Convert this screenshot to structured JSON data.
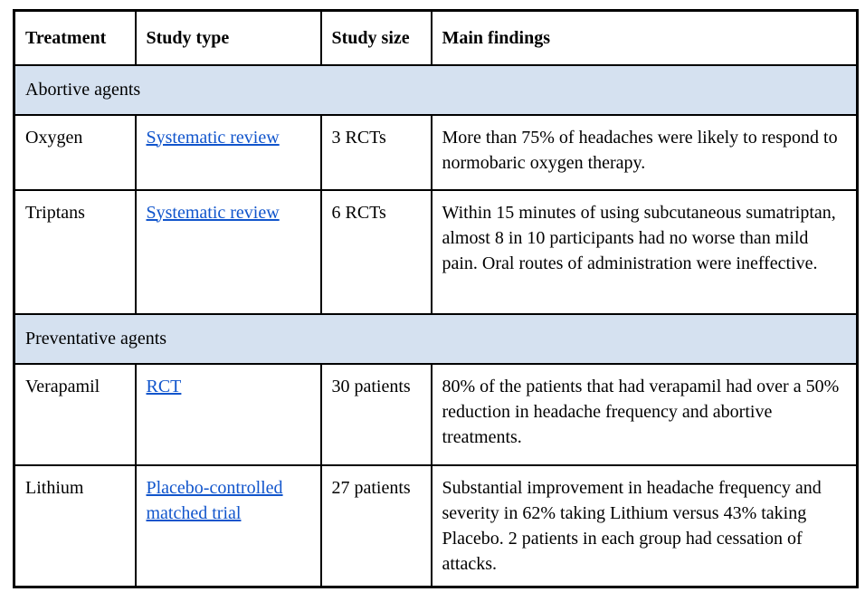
{
  "table": {
    "columns": [
      {
        "label": "Treatment"
      },
      {
        "label": "Study type"
      },
      {
        "label": "Study size"
      },
      {
        "label": "Main findings"
      }
    ],
    "sections": [
      {
        "header": "Abortive agents",
        "rows": [
          {
            "treatment": "Oxygen",
            "study_type": "Systematic review",
            "study_size": "3 RCTs",
            "findings": "More than 75% of headaches were likely to respond to normobaric oxygen therapy."
          },
          {
            "treatment": "Triptans",
            "study_type": "Systematic review",
            "study_size": "6 RCTs",
            "findings": "Within 15 minutes of using subcutaneous sumatriptan, almost 8 in 10 participants had no worse than mild pain. Oral routes of administration were ineffective."
          }
        ]
      },
      {
        "header": "Preventative agents",
        "rows": [
          {
            "treatment": "Verapamil",
            "study_type": "RCT",
            "study_size": "30 patients",
            "findings": "80% of the patients that had verapamil had over a 50% reduction in headache frequency and abortive treatments."
          },
          {
            "treatment": "Lithium",
            "study_type": "Placebo-controlled matched trial",
            "study_size": "27 patients",
            "findings": "Substantial improvement in headache frequency and severity in 62% taking Lithium versus 43% taking Placebo. 2 patients in each group had cessation of attacks."
          }
        ]
      }
    ],
    "colors": {
      "section_band": "#d5e1f0",
      "link": "#1155cc",
      "border": "#000000",
      "text": "#000000",
      "background": "#ffffff"
    }
  }
}
